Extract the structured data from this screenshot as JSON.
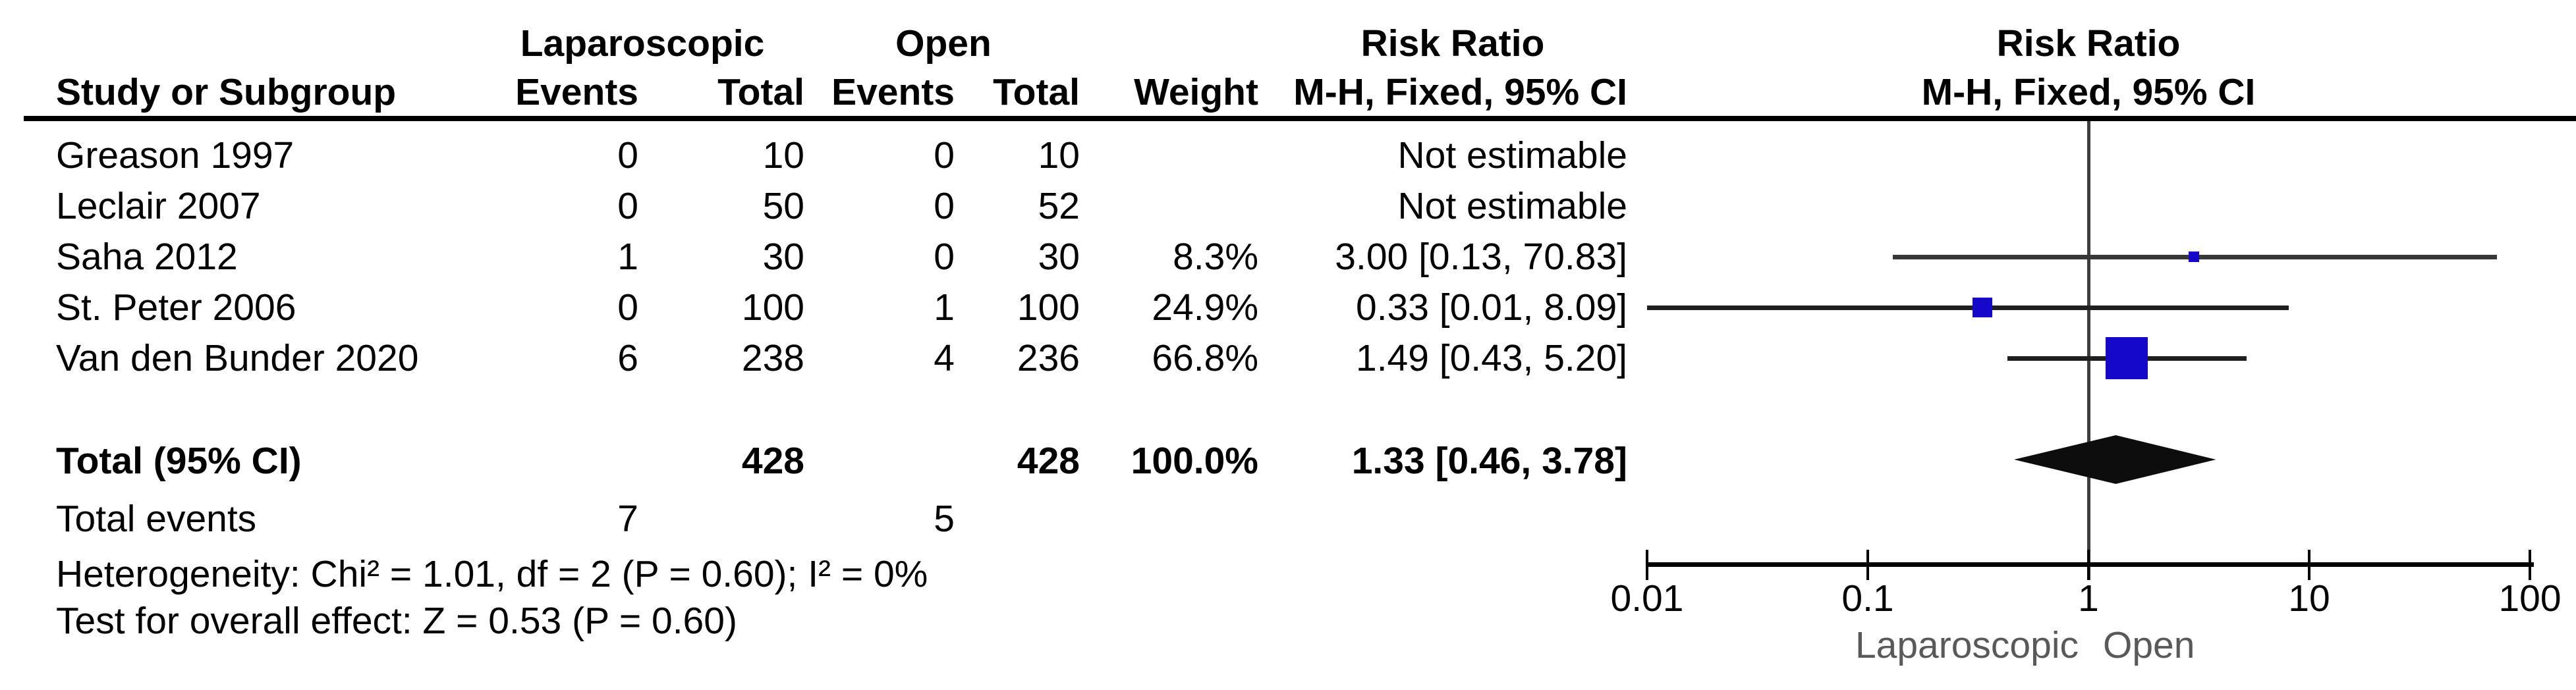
{
  "table": {
    "col_headers_top": {
      "group1": "Laparoscopic",
      "group2": "Open",
      "risk_ratio": "Risk Ratio"
    },
    "col_headers": {
      "study": "Study or Subgroup",
      "events": "Events",
      "total": "Total",
      "weight": "Weight",
      "mh_ci": "M-H, Fixed, 95% CI"
    },
    "studies": [
      {
        "name": "Greason 1997",
        "e1": "0",
        "t1": "10",
        "e2": "0",
        "t2": "10",
        "weight": "",
        "rr_text": "Not estimable"
      },
      {
        "name": "Leclair 2007",
        "e1": "0",
        "t1": "50",
        "e2": "0",
        "t2": "52",
        "weight": "",
        "rr_text": "Not estimable"
      },
      {
        "name": "Saha 2012",
        "e1": "1",
        "t1": "30",
        "e2": "0",
        "t2": "30",
        "weight": "8.3%",
        "rr_text": "3.00 [0.13, 70.83]"
      },
      {
        "name": "St. Peter 2006",
        "e1": "0",
        "t1": "100",
        "e2": "1",
        "t2": "100",
        "weight": "24.9%",
        "rr_text": "0.33 [0.01, 8.09]"
      },
      {
        "name": "Van den Bunder 2020",
        "e1": "6",
        "t1": "238",
        "e2": "4",
        "t2": "236",
        "weight": "66.8%",
        "rr_text": "1.49 [0.43, 5.20]"
      }
    ],
    "total_row": {
      "label": "Total (95% CI)",
      "t1": "428",
      "t2": "428",
      "weight": "100.0%",
      "rr_text": "1.33 [0.46, 3.78]"
    },
    "total_events": {
      "label": "Total events",
      "e1": "7",
      "e2": "5"
    },
    "heterogeneity": "Heterogeneity: Chi² = 1.01, df = 2 (P = 0.60); I² = 0%",
    "overall_effect": "Test for overall effect: Z = 0.53 (P = 0.60)"
  },
  "chart_data": {
    "type": "forest",
    "title": "Risk Ratio",
    "subtitle": "M-H, Fixed, 95% CI",
    "x_scale": "log10",
    "axis_ticks": [
      "0.01",
      "0.1",
      "1",
      "10",
      "100"
    ],
    "axis_range": [
      0.01,
      100
    ],
    "null_line_value": 1,
    "xlabel_left": "Laparoscopic",
    "xlabel_right": "Open",
    "points": [
      {
        "study": "Saha 2012",
        "rr": 3.0,
        "ci_low": 0.13,
        "ci_high": 70.83,
        "weight_pct": 8.3,
        "row": 2,
        "marker_px": 16
      },
      {
        "study": "St. Peter 2006",
        "rr": 0.33,
        "ci_low": 0.01,
        "ci_high": 8.09,
        "weight_pct": 24.9,
        "row": 3,
        "marker_px": 30
      },
      {
        "study": "Van den Bunder 2020",
        "rr": 1.49,
        "ci_low": 0.43,
        "ci_high": 5.2,
        "weight_pct": 66.8,
        "row": 4,
        "marker_px": 64
      }
    ],
    "diamond": {
      "rr": 1.33,
      "ci_low": 0.46,
      "ci_high": 3.78
    },
    "colors": {
      "marker": "#1508C9",
      "ci_line": "#1f1f1f",
      "saha_ci_line": "#383838",
      "diamond": "#0d0d0d",
      "null_line": "#3d3d3d",
      "axis": "#000000",
      "favour_label": "#595959"
    }
  }
}
